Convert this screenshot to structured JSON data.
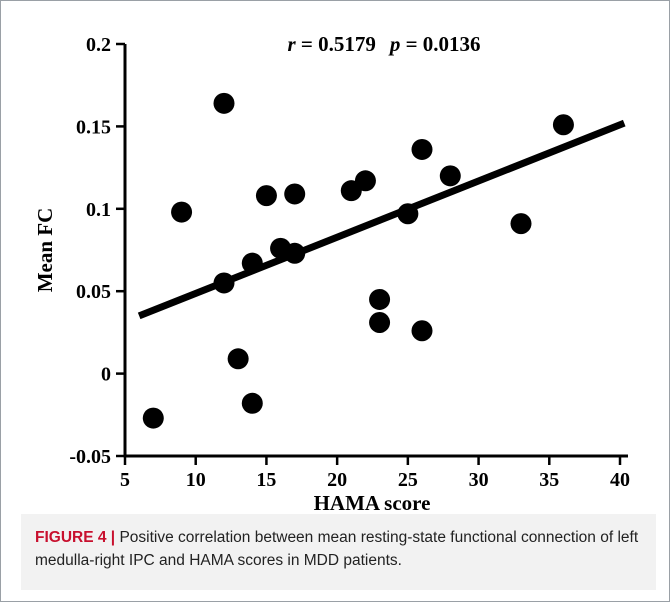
{
  "chart_data": {
    "type": "scatter",
    "xlabel": "HAMA score",
    "ylabel": "Mean FC",
    "annotation": {
      "r_symbol": "r",
      "r_text": " = 0.5179",
      "p_symbol": "p",
      "p_text": " = 0.0136"
    },
    "x_ticks": [
      "5",
      "10",
      "15",
      "20",
      "25",
      "30",
      "35",
      "40"
    ],
    "y_ticks": [
      "0.2",
      "0.15",
      "0.1",
      "0.05",
      "0",
      "-0.05"
    ],
    "xlim": [
      5,
      41
    ],
    "ylim": [
      -0.05,
      0.2
    ],
    "points": [
      {
        "x": 7,
        "y": -0.027
      },
      {
        "x": 9,
        "y": 0.098
      },
      {
        "x": 12,
        "y": 0.164
      },
      {
        "x": 12,
        "y": 0.055
      },
      {
        "x": 13,
        "y": 0.009
      },
      {
        "x": 14,
        "y": 0.067
      },
      {
        "x": 14,
        "y": -0.018
      },
      {
        "x": 15,
        "y": 0.108
      },
      {
        "x": 16,
        "y": 0.076
      },
      {
        "x": 17,
        "y": 0.109
      },
      {
        "x": 17,
        "y": 0.073
      },
      {
        "x": 21,
        "y": 0.111
      },
      {
        "x": 22,
        "y": 0.117
      },
      {
        "x": 23,
        "y": 0.045
      },
      {
        "x": 23,
        "y": 0.031
      },
      {
        "x": 25,
        "y": 0.097
      },
      {
        "x": 26,
        "y": 0.136
      },
      {
        "x": 26,
        "y": 0.026
      },
      {
        "x": 28,
        "y": 0.12
      },
      {
        "x": 33,
        "y": 0.091
      },
      {
        "x": 36,
        "y": 0.151
      }
    ],
    "fit_line": {
      "x1": 6,
      "y1": 0.035,
      "x2": 40.3,
      "y2": 0.152
    },
    "grid": false,
    "legend": "none"
  },
  "caption": {
    "figure_label": "FIGURE 4 |",
    "text": " Positive correlation between mean resting-state functional connection of left medulla-right IPC and HAMA scores in MDD patients."
  }
}
